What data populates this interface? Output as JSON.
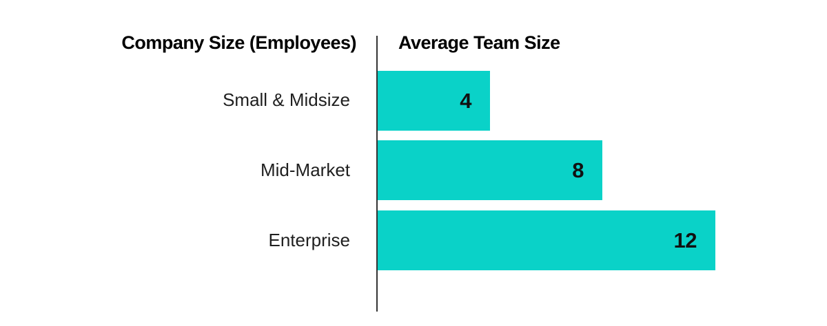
{
  "chart_data": {
    "type": "bar",
    "orientation": "horizontal",
    "left_header": "Company Size (Employees)",
    "right_header": "Average Team Size",
    "categories": [
      "Small & Midsize",
      "Mid-Market",
      "Enterprise"
    ],
    "values": [
      4,
      8,
      12
    ],
    "value_labels": [
      "4",
      "8",
      "12"
    ],
    "xlim": [
      0,
      12
    ],
    "grid": false,
    "legend": false,
    "bar_color": "#0AD2C8",
    "axis_color": "#333333",
    "header_text_color": "#000000",
    "category_text_color": "#1F1F1F",
    "value_text_color": "#111111",
    "background_color": "#FFFFFF"
  }
}
